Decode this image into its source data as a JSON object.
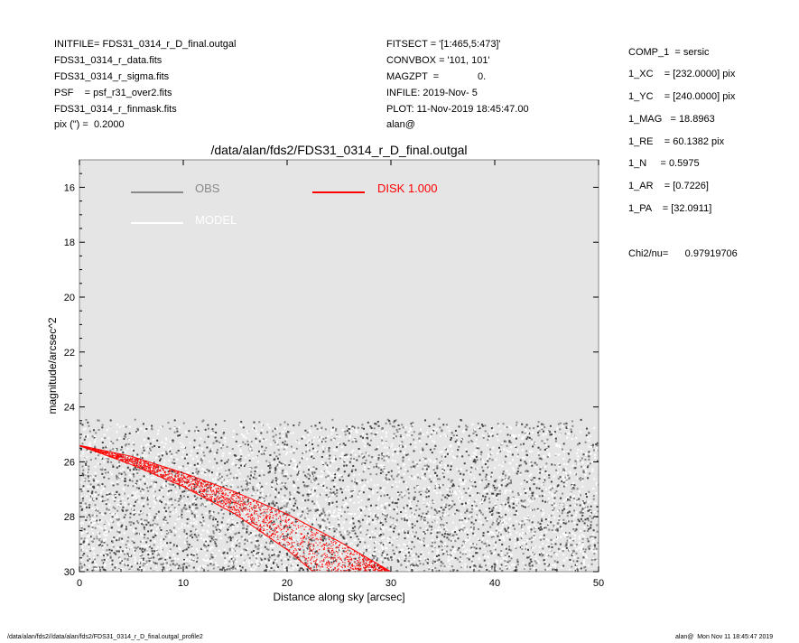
{
  "header_left": [
    "INITFILE= FDS31_0314_r_D_final.outgal",
    "FDS31_0314_r_data.fits",
    "FDS31_0314_r_sigma.fits",
    "PSF    = psf_r31_over2.fits",
    "FDS31_0314_r_finmask.fits",
    "pix (\") =  0.2000"
  ],
  "header_mid": [
    "FITSECT = '[1:465,5:473]'",
    "CONVBOX = '101, 101'",
    "MAGZPT  =              0.",
    "INFILE: 2019-Nov- 5",
    "PLOT: 11-Nov-2019 18:45:47.00",
    "alan@"
  ],
  "params": [
    "COMP_1  = sersic",
    "1_XC    = [232.0000] pix",
    "1_YC    = [240.0000] pix",
    "1_MAG   = 18.8963",
    "1_RE    = 60.1382 pix",
    "1_N     = 0.5975",
    "1_AR    = [0.7226]",
    "1_PA    = [32.0911]"
  ],
  "chi2": "Chi2/nu=      0.97919706",
  "footer_left": "/data/alan/fds2//data/alan/fds2/FDS31_0314_r_D_final.outgal_profile2",
  "footer_right": "alan@  Mon Nov 11 18:45:47 2019",
  "chart_data": {
    "type": "scatter",
    "title": "/data/alan/fds2/FDS31_0314_r_D_final.outgal",
    "xlabel": "Distance along sky [arcsec]",
    "ylabel": "magnitude/arcsec^2",
    "xlim": [
      0,
      50
    ],
    "ylim": [
      30,
      15
    ],
    "x_ticks": [
      0,
      10,
      20,
      30,
      40,
      50
    ],
    "y_ticks": [
      16,
      18,
      20,
      22,
      24,
      26,
      28,
      30
    ],
    "y_inverted": true,
    "background": "#e5e5e5",
    "legend": [
      {
        "label": "OBS",
        "color": "#888888"
      },
      {
        "label": "MODEL",
        "color": "#ffffff"
      },
      {
        "label": "DISK  1.000",
        "color": "#ff0000"
      }
    ],
    "series": [
      {
        "name": "OBS",
        "kind": "scatter",
        "color": "#888888",
        "x_range": [
          0,
          50
        ],
        "y_range": [
          24.4,
          30
        ]
      },
      {
        "name": "MODEL",
        "kind": "scatter",
        "color": "#ffffff",
        "x_range": [
          0,
          50
        ],
        "y_range": [
          24.6,
          30
        ]
      },
      {
        "name": "DISK  1.000",
        "kind": "band",
        "color": "#ff0000",
        "upper": {
          "x": [
            0,
            5,
            10,
            15,
            20,
            25,
            30
          ],
          "y": [
            25.4,
            25.8,
            26.4,
            27.1,
            27.9,
            28.9,
            30.0
          ]
        },
        "lower": {
          "x": [
            0,
            5,
            10,
            15,
            20,
            22.5
          ],
          "y": [
            25.4,
            26.1,
            26.9,
            27.9,
            29.2,
            30.0
          ]
        }
      }
    ]
  }
}
